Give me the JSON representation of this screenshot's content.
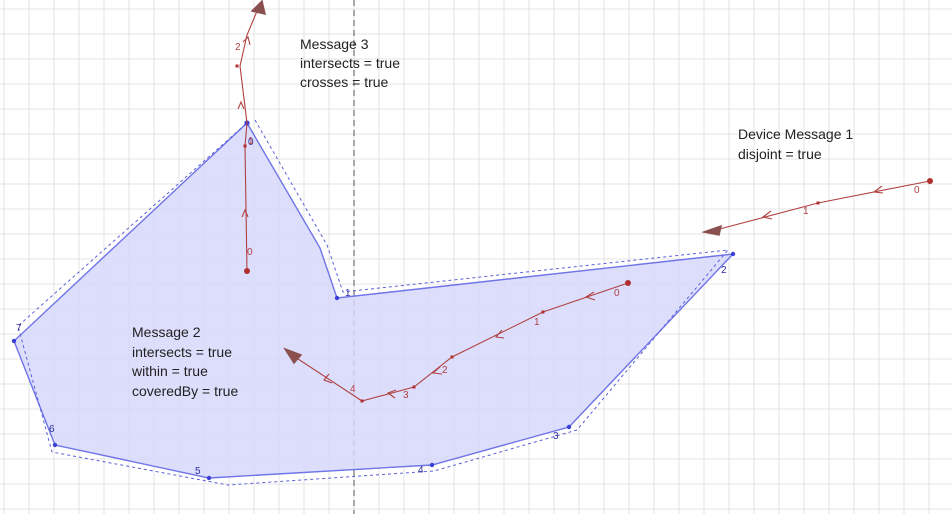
{
  "colors": {
    "background": "#ffffff",
    "grid": "#dcdcdc",
    "axis": "#555555",
    "polygon_fill": "#d6d8fb",
    "polygon_stroke": "#6f74e6",
    "polygon_vertex": "#3a40d6",
    "path_stroke": "#b04040",
    "path_point": "#b03030",
    "arrow_head": "#8a5050"
  },
  "messages": {
    "message3": [
      "Message 3",
      "intersects = true",
      "crosses = true"
    ],
    "device1": [
      "Device Message 1",
      "disjoint = true"
    ],
    "message2": [
      "Message 2",
      "intersects = true",
      "within = true",
      "coveredBy = true"
    ]
  },
  "polygon": {
    "vertex_labels": [
      "0",
      "1",
      "2",
      "3",
      "4",
      "5",
      "6",
      "7"
    ]
  },
  "paths": {
    "message3": {
      "labels": [
        "0",
        "1",
        "2"
      ]
    },
    "device1": {
      "labels": [
        "0",
        "1"
      ]
    },
    "message2": {
      "labels": [
        "0",
        "1",
        "2",
        "3",
        "4"
      ]
    }
  }
}
